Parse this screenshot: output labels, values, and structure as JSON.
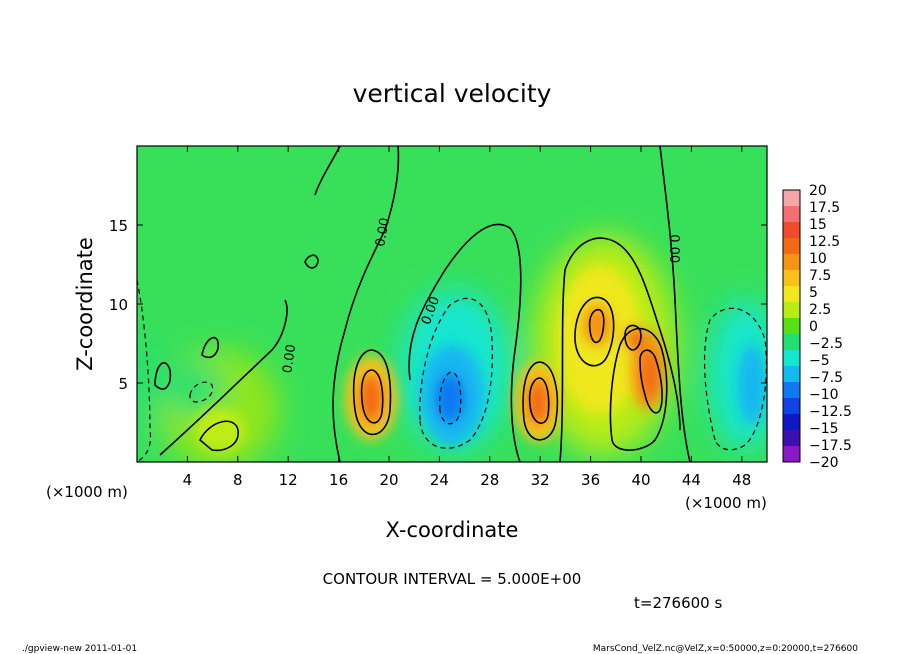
{
  "chart_data": {
    "type": "heatmap",
    "title": "vertical velocity",
    "xlabel": "X-coordinate",
    "ylabel": "Z-coordinate",
    "x_unit_left": "(×1000 m)",
    "x_unit_right": "(×1000 m)",
    "xlim": [
      0,
      50
    ],
    "ylim": [
      0,
      20
    ],
    "x_ticks": [
      4,
      8,
      12,
      16,
      20,
      24,
      28,
      32,
      36,
      40,
      44,
      48
    ],
    "y_ticks": [
      5,
      10,
      15
    ],
    "contour_interval_text": "CONTOUR INTERVAL = 5.000E+00",
    "time_text": "t=276600 s",
    "contour_labels": [
      {
        "text": "0.00",
        "x": 19.8,
        "z": 14.5,
        "angle": -80
      },
      {
        "text": "0.00",
        "x": 12.4,
        "z": 6.5,
        "angle": -82
      },
      {
        "text": "0.00",
        "x": 23.6,
        "z": 9.5,
        "angle": -70
      },
      {
        "text": "0.00",
        "x": 42.3,
        "z": 13.5,
        "angle": 90
      }
    ],
    "colorbar": {
      "levels": [
        20,
        17.5,
        15,
        12.5,
        10,
        7.5,
        5,
        2.5,
        0,
        -2.5,
        -5,
        -7.5,
        -10,
        -12.5,
        -15,
        -17.5,
        -20
      ],
      "labels": [
        "20",
        "17.5",
        "15",
        "12.5",
        "10",
        "7.5",
        "5",
        "2.5",
        "0",
        "−2.5",
        "−5",
        "−7.5",
        "−10",
        "−12.5",
        "−15",
        "−17.5",
        "−20"
      ],
      "colors": [
        "#f7a6a6",
        "#f46f6f",
        "#f14a2a",
        "#f36a12",
        "#f69414",
        "#f8c21a",
        "#eee81c",
        "#b8ec14",
        "#58e014",
        "#22e070",
        "#14e6d0",
        "#12b8f0",
        "#1078f4",
        "#1044e4",
        "#1018c4",
        "#3a10b0",
        "#8818c8"
      ]
    },
    "features": [
      {
        "kind": "updraft",
        "x": 18.8,
        "z": 4.2,
        "value": 12.5
      },
      {
        "kind": "updraft",
        "x": 31.8,
        "z": 3.8,
        "value": 12.5
      },
      {
        "kind": "updraft",
        "x": 36.5,
        "z": 8.0,
        "value": 10
      },
      {
        "kind": "updraft",
        "x": 40.5,
        "z": 5.5,
        "value": 12.5
      },
      {
        "kind": "downdraft",
        "x": 25.0,
        "z": 4.5,
        "value": -10
      },
      {
        "kind": "downdraft",
        "x": 49.0,
        "z": 5.0,
        "value": -7.5
      },
      {
        "kind": "downdraft",
        "x": 5.5,
        "z": 4.5,
        "value": -2.5
      }
    ]
  },
  "footer": {
    "left": "./gpview-new   2011-01-01",
    "right": "MarsCond_VelZ.nc@VelZ,x=0:50000,z=0:20000,t=276600"
  }
}
